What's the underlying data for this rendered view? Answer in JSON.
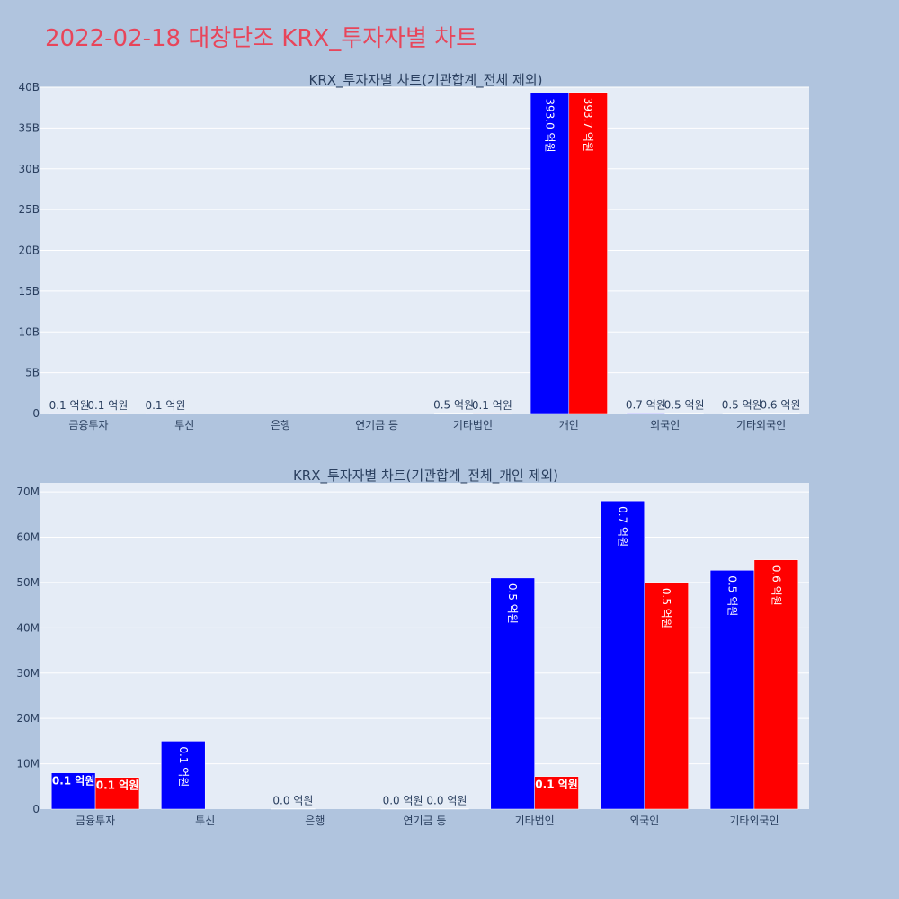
{
  "page": {
    "title": "2022-02-18 대창단조 KRX_투자자별 차트"
  },
  "colors": {
    "series_a": "#0000ff",
    "series_b": "#ff0000",
    "plot_bg": "#e5ecf6",
    "page_bg": "#b0c4de",
    "title": "#e8455a"
  },
  "chart_data": [
    {
      "type": "bar",
      "title": "KRX_투자자별 차트(기관합계_전체 제외)",
      "categories": [
        "금융투자",
        "투신",
        "은행",
        "연기금 등",
        "기타법인",
        "개인",
        "외국인",
        "기타외국인"
      ],
      "ylim": [
        0,
        40000000000
      ],
      "yticks": [
        0,
        5000000000,
        10000000000,
        15000000000,
        20000000000,
        25000000000,
        30000000000,
        35000000000,
        40000000000
      ],
      "ytick_labels": [
        "0",
        "5B",
        "10B",
        "15B",
        "20B",
        "25B",
        "30B",
        "35B",
        "40B"
      ],
      "grid": true,
      "series": [
        {
          "values": [
            8000000,
            15000000,
            0,
            0,
            51000000,
            39300000000,
            68000000,
            52700000
          ],
          "labels": [
            "0.1 억원",
            "0.1 억원",
            "",
            "",
            "0.5 억원",
            "393.0 억원",
            "0.7 억원",
            "0.5 억원"
          ]
        },
        {
          "values": [
            7000000,
            0,
            0,
            0,
            7200000,
            39370000000,
            50000000,
            55000000
          ],
          "labels": [
            "0.1 억원",
            "",
            "",
            "",
            "0.1 억원",
            "393.7 억원",
            "0.5 억원",
            "0.6 억원"
          ]
        }
      ]
    },
    {
      "type": "bar",
      "title": "KRX_투자자별 차트(기관합계_전체_개인 제외)",
      "categories": [
        "금융투자",
        "투신",
        "은행",
        "연기금 등",
        "기타법인",
        "외국인",
        "기타외국인"
      ],
      "ylim": [
        0,
        72000000
      ],
      "yticks": [
        0,
        10000000,
        20000000,
        30000000,
        40000000,
        50000000,
        60000000,
        70000000
      ],
      "ytick_labels": [
        "0",
        "10M",
        "20M",
        "30M",
        "40M",
        "50M",
        "60M",
        "70M"
      ],
      "grid": true,
      "series": [
        {
          "values": [
            8000000,
            15000000,
            100000,
            100000,
            51000000,
            68000000,
            52700000
          ],
          "labels": [
            "0.1 억원",
            "0.1 억원",
            "0.0 억원",
            "0.0 억원",
            "0.5 억원",
            "0.7 억원",
            "0.5 억원"
          ]
        },
        {
          "values": [
            7000000,
            0,
            0,
            100000,
            7200000,
            50000000,
            55000000
          ],
          "labels": [
            "0.1 억원",
            "",
            "",
            "0.0 억원",
            "0.1 억원",
            "0.5 억원",
            "0.6 억원"
          ]
        }
      ]
    }
  ]
}
